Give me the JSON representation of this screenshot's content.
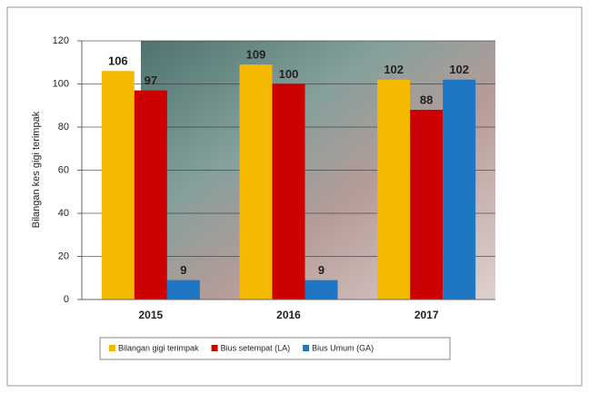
{
  "chart_data": {
    "type": "bar",
    "y_label": "Bilangan kes gigi terimpak",
    "categories": [
      "2015",
      "2016",
      "2017"
    ],
    "series": [
      {
        "name": "Bilangan gigi terimpak",
        "color": "#f5b800",
        "values": [
          106,
          109,
          102
        ]
      },
      {
        "name": "Bius setempat (LA)",
        "color": "#cc0000",
        "values": [
          97,
          100,
          88
        ]
      },
      {
        "name": "Bius Umum (GA)",
        "color": "#1f77c4",
        "values": [
          9,
          9,
          102
        ]
      }
    ],
    "ylim": [
      0,
      120
    ],
    "yticks": [
      0,
      20,
      40,
      60,
      80,
      100,
      120
    ],
    "grid": true
  }
}
